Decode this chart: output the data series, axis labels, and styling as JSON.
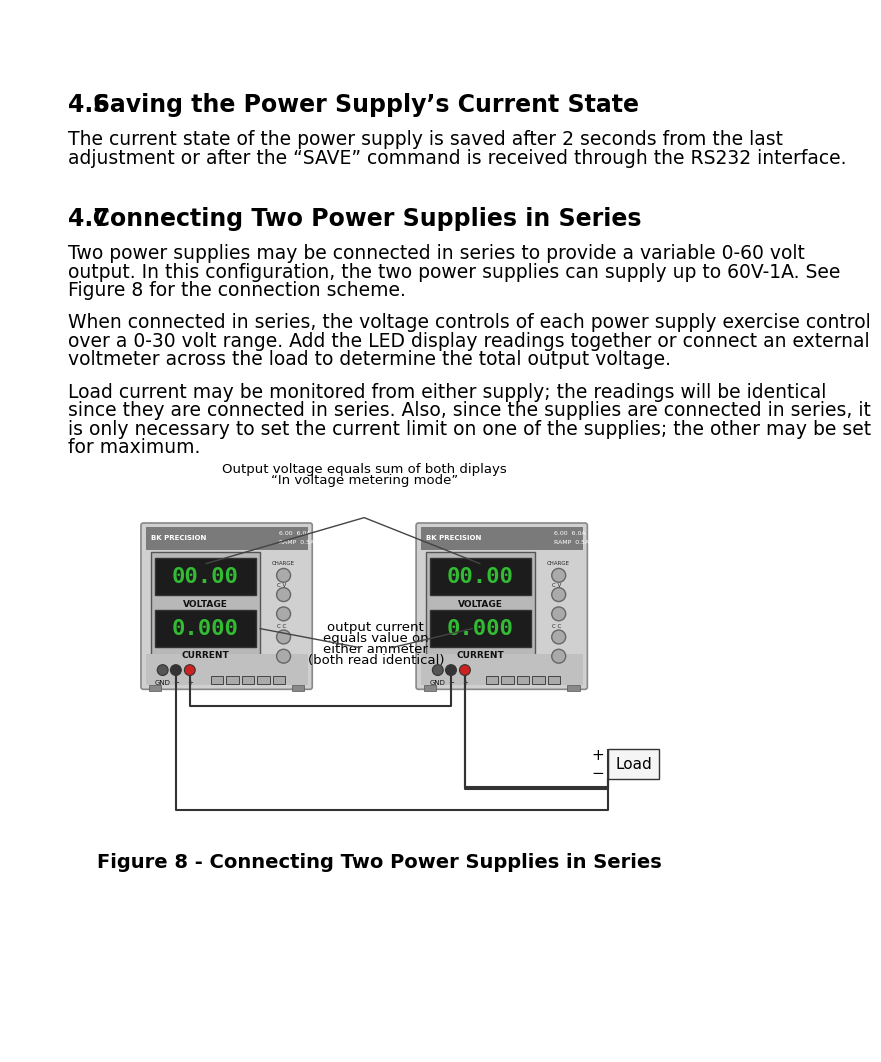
{
  "page_bg": "#ffffff",
  "lm": 75,
  "rm": 878,
  "section1_number": "4.6",
  "section1_title": "   Saving the Power Supply’s Current State",
  "section1_body_l1": "The current state of the power supply is saved after 2 seconds from the last",
  "section1_body_l2": "adjustment or after the “SAVE” command is received through the RS232 interface.",
  "section2_number": "4.7",
  "section2_title": "   Connecting Two Power Supplies in Series",
  "para1_l1": "Two power supplies may be connected in series to provide a variable 0-60 volt",
  "para1_l2": "output. In this configuration, the two power supplies can supply up to 60V-1A. See",
  "para1_l3": "Figure 8 for the connection scheme.",
  "para2_l1": "When connected in series, the voltage controls of each power supply exercise control",
  "para2_l2": "over a 0-30 volt range. Add the LED display readings together or connect an external",
  "para2_l3": "voltmeter across the load to determine the total output voltage.",
  "para3_l1": "Load current may be monitored from either supply; the readings will be identical",
  "para3_l2": "since they are connected in series. Also, since the supplies are connected in series, it",
  "para3_l3": "is only necessary to set the current limit on one of the supplies; the other may be set",
  "para3_l4": "for maximum.",
  "fig_caption": "Figure 8 - Connecting Two Power Supplies in Series",
  "ann_top_l1": "Output voltage equals sum of both diplays",
  "ann_top_l2": "“In voltage metering mode”",
  "ann_mid_l1": "output current",
  "ann_mid_l2": "equals value on",
  "ann_mid_l3": "either ammeter",
  "ann_mid_l4": "(both read identical)",
  "text_color": "#000000",
  "body_fontsize": 13.5,
  "heading_fontsize": 17,
  "body_font": "DejaVu Sans",
  "heading_font": "DejaVu Sans"
}
